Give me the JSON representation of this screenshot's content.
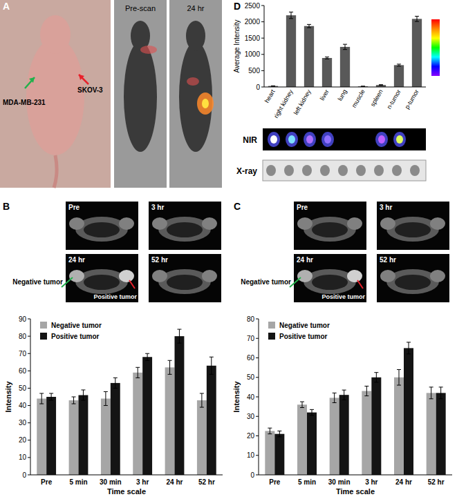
{
  "chart_data": [
    {
      "type": "bar",
      "x_label": "Time scale",
      "y_label": "Intensity",
      "categories": [
        "Pre",
        "5 min",
        "30 min",
        "3 hr",
        "24 hr",
        "52 hr"
      ],
      "series": [
        {
          "name": "Negative tumor",
          "color": "#a6a6a6",
          "values": [
            44,
            43,
            44,
            59,
            62,
            43
          ],
          "errors": [
            3,
            2,
            4,
            3,
            4,
            4
          ]
        },
        {
          "name": "Positive tumor",
          "color": "#141414",
          "values": [
            45,
            46,
            53,
            68,
            80,
            63
          ],
          "errors": [
            2,
            3,
            3,
            2,
            4,
            5
          ]
        }
      ],
      "ylim": [
        0,
        90
      ],
      "yticks": [
        0,
        10,
        20,
        30,
        40,
        50,
        60,
        70,
        80,
        90
      ],
      "grid": false,
      "legend": "top-left"
    },
    {
      "type": "bar",
      "x_label": "Time scale",
      "y_label": "Intensity",
      "categories": [
        "Pre",
        "5 min",
        "30 min",
        "3 hr",
        "24 hr",
        "52 hr"
      ],
      "series": [
        {
          "name": "Negative tumor",
          "color": "#a6a6a6",
          "values": [
            22.5,
            36,
            39.5,
            43,
            50,
            42
          ],
          "errors": [
            1.5,
            1.5,
            2.5,
            2.5,
            4,
            3
          ]
        },
        {
          "name": "Positive tumor",
          "color": "#141414",
          "values": [
            21,
            32,
            41,
            50,
            65,
            42
          ],
          "errors": [
            1.5,
            1.5,
            2.5,
            2.5,
            3,
            3
          ]
        }
      ],
      "ylim": [
        0,
        80
      ],
      "yticks": [
        0,
        10,
        20,
        30,
        40,
        50,
        60,
        70,
        80
      ],
      "grid": false,
      "legend": "top-left"
    },
    {
      "type": "bar",
      "y_label": "Average Intensity",
      "categories": [
        "heart",
        "right kidney",
        "left kidney",
        "liver",
        "lung",
        "muscle",
        "spleen",
        "n-tumor",
        "p-tumor"
      ],
      "values": [
        30,
        2200,
        1870,
        890,
        1230,
        20,
        60,
        670,
        2090
      ],
      "errors": [
        5,
        100,
        50,
        30,
        80,
        5,
        10,
        30,
        80
      ],
      "color": "#595959",
      "ylim": [
        0,
        2500
      ],
      "yticks": [
        0,
        500,
        1000,
        1500,
        2000,
        2500
      ],
      "grid": false
    }
  ],
  "figure": {
    "panel_labels": [
      "A",
      "B",
      "C",
      "D"
    ],
    "panel_a": {
      "tumor_labels": [
        "MDA-MB-231",
        "SKOV-3"
      ],
      "image_titles": [
        "Pre-scan",
        "24 hr"
      ]
    },
    "panel_b_images": {
      "titles": [
        "Pre",
        "3 hr",
        "24 hr",
        "52 hr"
      ],
      "tumor_labels": [
        "Negative tumor",
        "Positive tumor"
      ]
    },
    "panel_c_images": {
      "titles": [
        "Pre",
        "3 hr",
        "24 hr",
        "52 hr"
      ],
      "tumor_labels": [
        "Negative tumor",
        "Positive tumor"
      ]
    },
    "panel_d_strips": [
      "NIR",
      "X-ray"
    ]
  }
}
